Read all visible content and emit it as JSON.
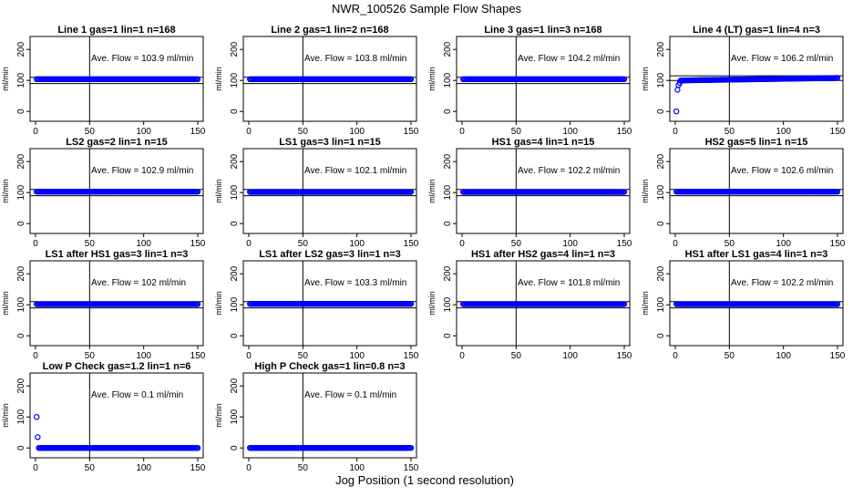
{
  "figure": {
    "title": "NWR_100526  Sample Flow Shapes",
    "xlabel": "Jog Position (1 second resolution)"
  },
  "chart_data": [
    {
      "type": "scatter",
      "title": "Line 1 gas=1 lin=1 n=168",
      "ylabel": "ml/min",
      "annotation": "Ave. Flow =  103.9  ml/min",
      "mean": 103.9,
      "xlim": [
        0,
        150
      ],
      "ylim": [
        -20,
        230
      ],
      "xticks": [
        0,
        50,
        100,
        150
      ],
      "yticks": [
        0,
        100,
        200
      ],
      "vline": 50,
      "hlines": [
        90,
        110
      ],
      "color": "#0000ff",
      "x": [
        1,
        150
      ],
      "y": [
        104,
        104
      ],
      "pattern": "dense"
    },
    {
      "type": "scatter",
      "title": "Line 2 gas=1 lin=2 n=168",
      "ylabel": "ml/min",
      "annotation": "Ave. Flow =  103.8  ml/min",
      "mean": 103.8,
      "xlim": [
        0,
        150
      ],
      "ylim": [
        -20,
        230
      ],
      "xticks": [
        0,
        50,
        100,
        150
      ],
      "yticks": [
        0,
        100,
        200
      ],
      "vline": 50,
      "hlines": [
        90,
        110
      ],
      "color": "#0000ff",
      "x": [
        1,
        150
      ],
      "y": [
        104,
        104
      ],
      "pattern": "dense"
    },
    {
      "type": "scatter",
      "title": "Line 3 gas=1 lin=3 n=168",
      "ylabel": "ml/min",
      "annotation": "Ave. Flow =  104.2  ml/min",
      "mean": 104.2,
      "xlim": [
        0,
        150
      ],
      "ylim": [
        -20,
        230
      ],
      "xticks": [
        0,
        50,
        100,
        150
      ],
      "yticks": [
        0,
        100,
        200
      ],
      "vline": 50,
      "hlines": [
        90,
        110
      ],
      "color": "#0000ff",
      "x": [
        1,
        150
      ],
      "y": [
        104,
        104
      ],
      "pattern": "dense"
    },
    {
      "type": "scatter",
      "title": "Line 4 (LT) gas=1 lin=4 n=3",
      "ylabel": "ml/min",
      "annotation": "Ave. Flow =  106.2  ml/min",
      "mean": 106.2,
      "xlim": [
        0,
        150
      ],
      "ylim": [
        -20,
        230
      ],
      "xticks": [
        0,
        50,
        100,
        150
      ],
      "yticks": [
        0,
        100,
        200
      ],
      "vline": 50,
      "hlines": [
        100,
        115
      ],
      "color": "#0000ff",
      "x": [
        1,
        2,
        3,
        4,
        5,
        150
      ],
      "y": [
        0,
        70,
        85,
        92,
        100,
        108
      ],
      "pattern": "dense"
    },
    {
      "type": "scatter",
      "title": "LS2 gas=2 lin=1 n=15",
      "ylabel": "ml/min",
      "annotation": "Ave. Flow =  102.9  ml/min",
      "mean": 102.9,
      "xlim": [
        0,
        150
      ],
      "ylim": [
        -20,
        230
      ],
      "xticks": [
        0,
        50,
        100,
        150
      ],
      "yticks": [
        0,
        100,
        200
      ],
      "vline": 50,
      "hlines": [
        90,
        110
      ],
      "color": "#0000ff",
      "x": [
        1,
        150
      ],
      "y": [
        103,
        103
      ],
      "pattern": "dense"
    },
    {
      "type": "scatter",
      "title": "LS1 gas=3 lin=1 n=15",
      "ylabel": "ml/min",
      "annotation": "Ave. Flow =  102.1  ml/min",
      "mean": 102.1,
      "xlim": [
        0,
        150
      ],
      "ylim": [
        -20,
        230
      ],
      "xticks": [
        0,
        50,
        100,
        150
      ],
      "yticks": [
        0,
        100,
        200
      ],
      "vline": 50,
      "hlines": [
        90,
        110
      ],
      "color": "#0000ff",
      "x": [
        1,
        150
      ],
      "y": [
        102,
        102
      ],
      "pattern": "dense"
    },
    {
      "type": "scatter",
      "title": "HS1 gas=4 lin=1 n=15",
      "ylabel": "ml/min",
      "annotation": "Ave. Flow =  102.2  ml/min",
      "mean": 102.2,
      "xlim": [
        0,
        150
      ],
      "ylim": [
        -20,
        230
      ],
      "xticks": [
        0,
        50,
        100,
        150
      ],
      "yticks": [
        0,
        100,
        200
      ],
      "vline": 50,
      "hlines": [
        90,
        110
      ],
      "color": "#0000ff",
      "x": [
        1,
        150
      ],
      "y": [
        102,
        102
      ],
      "pattern": "dense"
    },
    {
      "type": "scatter",
      "title": "HS2 gas=5 lin=1 n=15",
      "ylabel": "ml/min",
      "annotation": "Ave. Flow =  102.6  ml/min",
      "mean": 102.6,
      "xlim": [
        0,
        150
      ],
      "ylim": [
        -20,
        230
      ],
      "xticks": [
        0,
        50,
        100,
        150
      ],
      "yticks": [
        0,
        100,
        200
      ],
      "vline": 50,
      "hlines": [
        90,
        110
      ],
      "color": "#0000ff",
      "x": [
        1,
        150
      ],
      "y": [
        103,
        103
      ],
      "pattern": "dense"
    },
    {
      "type": "scatter",
      "title": "LS1 after HS1 gas=3 lin=1 n=3",
      "ylabel": "ml/min",
      "annotation": "Ave. Flow =  102  ml/min",
      "mean": 102,
      "xlim": [
        0,
        150
      ],
      "ylim": [
        -20,
        230
      ],
      "xticks": [
        0,
        50,
        100,
        150
      ],
      "yticks": [
        0,
        100,
        200
      ],
      "vline": 50,
      "hlines": [
        90,
        110
      ],
      "color": "#0000ff",
      "x": [
        1,
        150
      ],
      "y": [
        102,
        102
      ],
      "pattern": "dense"
    },
    {
      "type": "scatter",
      "title": "LS1 after LS2 gas=3 lin=1 n=3",
      "ylabel": "ml/min",
      "annotation": "Ave. Flow =  103.3  ml/min",
      "mean": 103.3,
      "xlim": [
        0,
        150
      ],
      "ylim": [
        -20,
        230
      ],
      "xticks": [
        0,
        50,
        100,
        150
      ],
      "yticks": [
        0,
        100,
        200
      ],
      "vline": 50,
      "hlines": [
        90,
        110
      ],
      "color": "#0000ff",
      "x": [
        1,
        150
      ],
      "y": [
        103,
        103
      ],
      "pattern": "dense"
    },
    {
      "type": "scatter",
      "title": "HS1 after HS2 gas=4 lin=1 n=3",
      "ylabel": "ml/min",
      "annotation": "Ave. Flow =  101.8  ml/min",
      "mean": 101.8,
      "xlim": [
        0,
        150
      ],
      "ylim": [
        -20,
        230
      ],
      "xticks": [
        0,
        50,
        100,
        150
      ],
      "yticks": [
        0,
        100,
        200
      ],
      "vline": 50,
      "hlines": [
        90,
        110
      ],
      "color": "#0000ff",
      "x": [
        1,
        150
      ],
      "y": [
        102,
        102
      ],
      "pattern": "dense"
    },
    {
      "type": "scatter",
      "title": "HS1 after LS1 gas=4 lin=1 n=3",
      "ylabel": "ml/min",
      "annotation": "Ave. Flow =  102.2  ml/min",
      "mean": 102.2,
      "xlim": [
        0,
        150
      ],
      "ylim": [
        -20,
        230
      ],
      "xticks": [
        0,
        50,
        100,
        150
      ],
      "yticks": [
        0,
        100,
        200
      ],
      "vline": 50,
      "hlines": [
        90,
        110
      ],
      "color": "#0000ff",
      "x": [
        1,
        150
      ],
      "y": [
        102,
        102
      ],
      "pattern": "dense"
    },
    {
      "type": "scatter",
      "title": "Low P Check gas=1.2 lin=1 n=6",
      "ylabel": "ml/min",
      "annotation": "Ave. Flow =  0.1  ml/min",
      "mean": 0.1,
      "xlim": [
        0,
        150
      ],
      "ylim": [
        -20,
        230
      ],
      "xticks": [
        0,
        50,
        100,
        150
      ],
      "yticks": [
        0,
        100,
        200
      ],
      "vline": 50,
      "hlines": [],
      "color": "#0000ff",
      "x": [
        1,
        2,
        3,
        150
      ],
      "y": [
        100,
        35,
        0,
        0
      ],
      "pattern": "dense"
    },
    {
      "type": "scatter",
      "title": "High P Check gas=1 lin=0.8 n=3",
      "ylabel": "ml/min",
      "annotation": "Ave. Flow =  0.1  ml/min",
      "mean": 0.1,
      "xlim": [
        0,
        150
      ],
      "ylim": [
        -20,
        230
      ],
      "xticks": [
        0,
        50,
        100,
        150
      ],
      "yticks": [
        0,
        100,
        200
      ],
      "vline": 50,
      "hlines": [],
      "color": "#0000ff",
      "x": [
        1,
        150
      ],
      "y": [
        0,
        0
      ],
      "pattern": "dense"
    }
  ]
}
